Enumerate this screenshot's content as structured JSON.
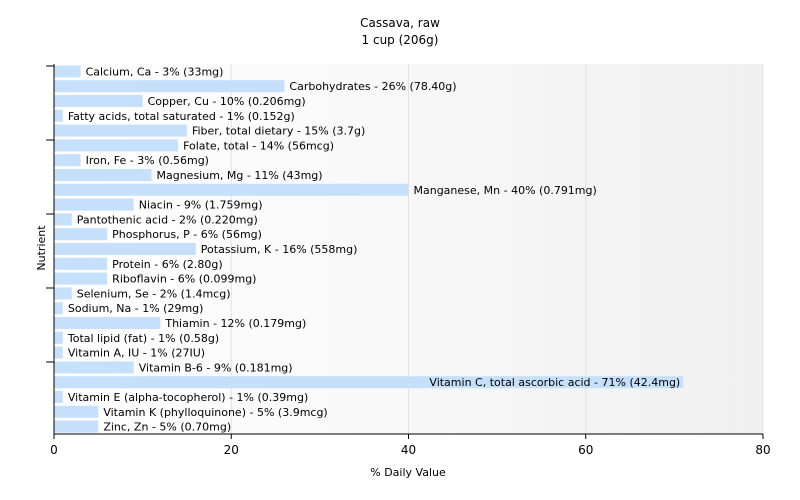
{
  "chart_data": {
    "type": "bar",
    "orientation": "horizontal",
    "title": "Cassava, raw",
    "subtitle": "1 cup (206g)",
    "xlabel": "% Daily Value",
    "ylabel": "Nutrient",
    "xlim": [
      0,
      80
    ],
    "xticks": [
      0,
      20,
      40,
      60,
      80
    ],
    "grid": true,
    "bar_color": "#c6dffb",
    "categories": [
      "Calcium, Ca",
      "Carbohydrates",
      "Copper, Cu",
      "Fatty acids, total saturated",
      "Fiber, total dietary",
      "Folate, total",
      "Iron, Fe",
      "Magnesium, Mg",
      "Manganese, Mn",
      "Niacin",
      "Pantothenic acid",
      "Phosphorus, P",
      "Potassium, K",
      "Protein",
      "Riboflavin",
      "Selenium, Se",
      "Sodium, Na",
      "Thiamin",
      "Total lipid (fat)",
      "Vitamin A, IU",
      "Vitamin B-6",
      "Vitamin C, total ascorbic acid",
      "Vitamin E (alpha-tocopherol)",
      "Vitamin K (phylloquinone)",
      "Zinc, Zn"
    ],
    "values": [
      3,
      26,
      10,
      1,
      15,
      14,
      3,
      11,
      40,
      9,
      2,
      6,
      16,
      6,
      6,
      2,
      1,
      12,
      1,
      1,
      9,
      71,
      1,
      5,
      5
    ],
    "labels": [
      "Calcium, Ca - 3% (33mg)",
      "Carbohydrates - 26% (78.40g)",
      "Copper, Cu - 10% (0.206mg)",
      "Fatty acids, total saturated - 1% (0.152g)",
      "Fiber, total dietary - 15% (3.7g)",
      "Folate, total - 14% (56mcg)",
      "Iron, Fe - 3% (0.56mg)",
      "Magnesium, Mg - 11% (43mg)",
      "Manganese, Mn - 40% (0.791mg)",
      "Niacin - 9% (1.759mg)",
      "Pantothenic acid - 2% (0.220mg)",
      "Phosphorus, P - 6% (56mg)",
      "Potassium, K - 16% (558mg)",
      "Protein - 6% (2.80g)",
      "Riboflavin - 6% (0.099mg)",
      "Selenium, Se - 2% (1.4mcg)",
      "Sodium, Na - 1% (29mg)",
      "Thiamin - 12% (0.179mg)",
      "Total lipid (fat) - 1% (0.58g)",
      "Vitamin A, IU - 1% (27IU)",
      "Vitamin B-6 - 9% (0.181mg)",
      "Vitamin C, total ascorbic acid - 71% (42.4mg)",
      "Vitamin E (alpha-tocopherol) - 1% (0.39mg)",
      "Vitamin K (phylloquinone) - 5% (3.9mcg)",
      "Zinc, Zn - 5% (0.70mg)"
    ]
  }
}
